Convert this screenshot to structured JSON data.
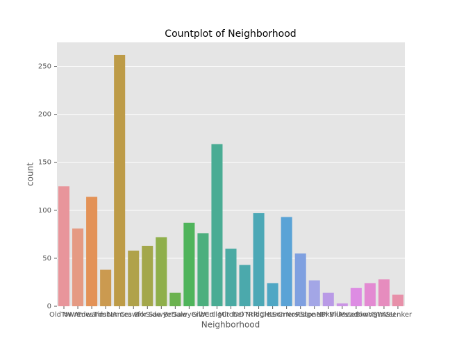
{
  "chart_data": {
    "type": "bar",
    "title": "Countplot of Neighborhood",
    "xlabel": "Neighborhood",
    "ylabel": "count",
    "categories": [
      "OldTown",
      "NWAmes",
      "Edwards",
      "Timber",
      "NAmes",
      "Crawfor",
      "BrkSide",
      "Sawyer",
      "BrDale",
      "SawyerW",
      "Gilbert",
      "CollgCr",
      "Mitchel",
      "IDOTRR",
      "NridgHt",
      "ClearCr",
      "Somerst",
      "NoRidge",
      "StoneBr",
      "NPkVill",
      "Blueste",
      "MeadowV",
      "Blmngtn",
      "SWISU",
      "Veenker"
    ],
    "values": [
      125,
      81,
      114,
      38,
      262,
      58,
      63,
      72,
      14,
      87,
      76,
      169,
      60,
      43,
      97,
      24,
      93,
      55,
      27,
      14,
      3,
      19,
      24,
      28,
      12
    ],
    "colors": [
      "#e8959b",
      "#e59a83",
      "#e39257",
      "#cb9a50",
      "#bd9b47",
      "#b0a24a",
      "#a3a74b",
      "#8faf4b",
      "#6bb24f",
      "#4fb45b",
      "#4caf7e",
      "#4aac94",
      "#4aaaa3",
      "#4ba9ac",
      "#4ca8b6",
      "#4fa7c4",
      "#5aa3d6",
      "#7fa0e0",
      "#a3a6e6",
      "#b99ae6",
      "#cb95e5",
      "#dd8ce3",
      "#e38ad2",
      "#e68cbe",
      "#e790a9"
    ],
    "ylim": [
      0,
      275
    ],
    "yticks": [
      0,
      50,
      100,
      150,
      200,
      250
    ],
    "grid": true
  }
}
